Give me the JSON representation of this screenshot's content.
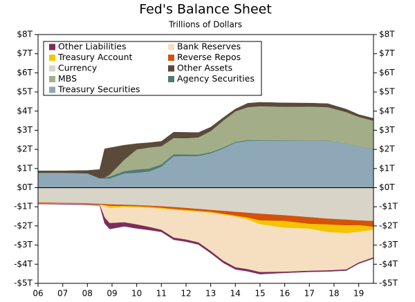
{
  "chart_data": {
    "type": "stacked-area",
    "title": "Fed's Balance Sheet",
    "subtitle": "Trillions of Dollars",
    "x": [
      2006,
      2007,
      2008,
      2008.5,
      2008.7,
      2008.9,
      2009.5,
      2010,
      2010.5,
      2011,
      2011.5,
      2012,
      2012.5,
      2013,
      2013.5,
      2014,
      2014.5,
      2015,
      2016,
      2017,
      2017.75,
      2018.5,
      2019,
      2019.6
    ],
    "xlim": [
      2006,
      2019.6
    ],
    "xticks": [
      {
        "value": 2006,
        "label": "06"
      },
      {
        "value": 2007,
        "label": "07"
      },
      {
        "value": 2008,
        "label": "08"
      },
      {
        "value": 2009,
        "label": "09"
      },
      {
        "value": 2010,
        "label": "10"
      },
      {
        "value": 2011,
        "label": "11"
      },
      {
        "value": 2012,
        "label": "12"
      },
      {
        "value": 2013,
        "label": "13"
      },
      {
        "value": 2014,
        "label": "14"
      },
      {
        "value": 2015,
        "label": "15"
      },
      {
        "value": 2016,
        "label": "16"
      },
      {
        "value": 2017,
        "label": "17"
      },
      {
        "value": 2018,
        "label": "18"
      },
      {
        "value": 2019,
        "label": "19"
      }
    ],
    "ylim": [
      -5,
      8
    ],
    "yticks": [
      {
        "value": 8,
        "label": "$8T"
      },
      {
        "value": 7,
        "label": "$7T"
      },
      {
        "value": 6,
        "label": "$6T"
      },
      {
        "value": 5,
        "label": "$5T"
      },
      {
        "value": 4,
        "label": "$4T"
      },
      {
        "value": 3,
        "label": "$3T"
      },
      {
        "value": 2,
        "label": "$2T"
      },
      {
        "value": 1,
        "label": "$1T"
      },
      {
        "value": 0,
        "label": "$0T"
      },
      {
        "value": -1,
        "label": "-$1T"
      },
      {
        "value": -2,
        "label": "-$2T"
      },
      {
        "value": -3,
        "label": "-$3T"
      },
      {
        "value": -4,
        "label": "-$4T"
      },
      {
        "value": -5,
        "label": "-$5T"
      }
    ],
    "grid": false,
    "legend": "top-left",
    "series": [
      {
        "name": "Other Liabilities",
        "color": "#7b2d5e",
        "values": [
          -0.02,
          -0.02,
          -0.02,
          -0.02,
          -0.3,
          -0.3,
          -0.2,
          -0.2,
          -0.15,
          -0.1,
          -0.1,
          -0.1,
          -0.1,
          -0.1,
          -0.1,
          -0.1,
          -0.1,
          -0.1,
          -0.05,
          -0.05,
          -0.05,
          -0.05,
          -0.05,
          -0.05
        ]
      },
      {
        "name": "Bank Reserves",
        "color": "#f5dfc0",
        "values": [
          -0.01,
          -0.01,
          -0.01,
          -0.01,
          -0.6,
          -0.8,
          -0.8,
          -0.9,
          -1.0,
          -1.1,
          -1.45,
          -1.5,
          -1.6,
          -2.0,
          -2.4,
          -2.65,
          -2.6,
          -2.5,
          -2.3,
          -2.2,
          -2.0,
          -1.9,
          -1.6,
          -1.45
        ]
      },
      {
        "name": "Treasury Account",
        "color": "#f5c400",
        "values": [
          -0.01,
          -0.01,
          -0.01,
          -0.01,
          -0.05,
          -0.1,
          -0.05,
          -0.05,
          -0.05,
          -0.05,
          -0.05,
          -0.05,
          -0.05,
          -0.05,
          -0.05,
          -0.05,
          -0.1,
          -0.2,
          -0.35,
          -0.25,
          -0.4,
          -0.4,
          -0.35,
          -0.15
        ]
      },
      {
        "name": "Reverse Repos",
        "color": "#d4520a",
        "values": [
          -0.03,
          -0.03,
          -0.04,
          -0.04,
          -0.06,
          -0.08,
          -0.07,
          -0.06,
          -0.06,
          -0.08,
          -0.1,
          -0.1,
          -0.1,
          -0.1,
          -0.15,
          -0.2,
          -0.25,
          -0.35,
          -0.3,
          -0.35,
          -0.3,
          -0.3,
          -0.25,
          -0.3
        ]
      },
      {
        "name": "Currency",
        "color": "#d8d4c8",
        "values": [
          -0.78,
          -0.8,
          -0.82,
          -0.85,
          -0.86,
          -0.88,
          -0.9,
          -0.92,
          -0.95,
          -0.98,
          -1.02,
          -1.07,
          -1.12,
          -1.17,
          -1.22,
          -1.27,
          -1.32,
          -1.37,
          -1.45,
          -1.55,
          -1.63,
          -1.68,
          -1.72,
          -1.75
        ]
      },
      {
        "name": "Other Assets",
        "color": "#5a4a3a",
        "values": [
          0.1,
          0.1,
          0.15,
          0.45,
          1.5,
          1.4,
          0.75,
          0.3,
          0.25,
          0.25,
          0.3,
          0.3,
          0.25,
          0.2,
          0.15,
          0.12,
          0.2,
          0.2,
          0.2,
          0.18,
          0.18,
          0.15,
          0.12,
          0.12
        ]
      },
      {
        "name": "MBS",
        "color": "#a3ae88",
        "values": [
          0,
          0,
          0,
          0,
          0,
          0.1,
          0.6,
          1.05,
          1.1,
          0.95,
          0.85,
          0.85,
          0.9,
          1.1,
          1.4,
          1.6,
          1.72,
          1.77,
          1.75,
          1.77,
          1.75,
          1.65,
          1.55,
          1.45
        ]
      },
      {
        "name": "Agency Securities",
        "color": "#4f7c74",
        "values": [
          0,
          0,
          0,
          0.02,
          0.05,
          0.1,
          0.12,
          0.17,
          0.15,
          0.12,
          0.1,
          0.08,
          0.07,
          0.06,
          0.05,
          0.04,
          0.04,
          0.03,
          0.02,
          0.01,
          0.01,
          0,
          0,
          0
        ]
      },
      {
        "name": "Treasury Securities",
        "color": "#8fa8b8",
        "values": [
          0.78,
          0.78,
          0.75,
          0.48,
          0.48,
          0.48,
          0.75,
          0.78,
          0.85,
          1.1,
          1.65,
          1.66,
          1.66,
          1.8,
          2.05,
          2.35,
          2.45,
          2.46,
          2.46,
          2.46,
          2.45,
          2.3,
          2.15,
          2.05
        ]
      }
    ]
  }
}
